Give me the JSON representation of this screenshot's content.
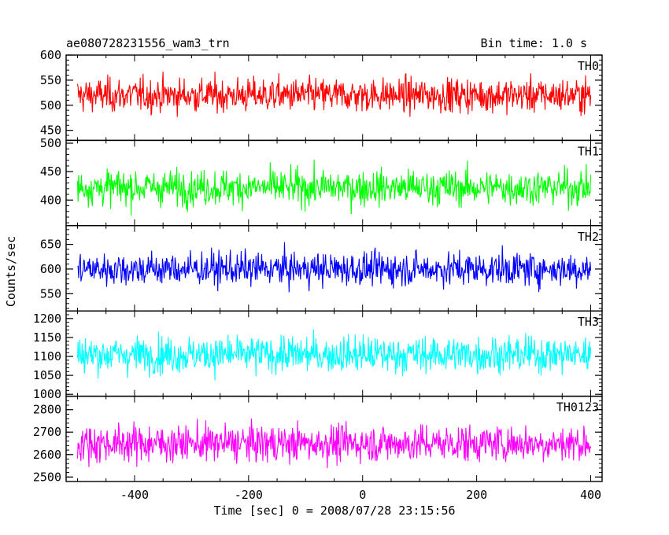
{
  "header": {
    "title": "ae080728231556_wam3_trn",
    "bin_time": "Bin time: 1.0 s"
  },
  "chart_data": {
    "type": "line",
    "title": "ae080728231556_wam3_trn",
    "xlabel": "Time [sec] 0 = 2008/07/28 23:15:56",
    "ylabel": "Counts/sec",
    "xlim": [
      -520,
      420
    ],
    "x_ticks": [
      -400,
      -200,
      0,
      200,
      400
    ],
    "x_range": [
      -500,
      400
    ],
    "grid": false,
    "panels": [
      {
        "name": "TH0",
        "color": "#ff0000",
        "ylim": [
          430,
          600
        ],
        "y_ticks": [
          450,
          500,
          550,
          600
        ],
        "mean": 520,
        "sd": 24
      },
      {
        "name": "TH1",
        "color": "#00ff00",
        "ylim": [
          355,
          505
        ],
        "y_ticks": [
          400,
          450,
          500
        ],
        "mean": 422,
        "sd": 22
      },
      {
        "name": "TH2",
        "color": "#0000ff",
        "ylim": [
          515,
          688
        ],
        "y_ticks": [
          550,
          600,
          650
        ],
        "mean": 600,
        "sd": 24
      },
      {
        "name": "TH3",
        "color": "#00ffff",
        "ylim": [
          995,
          1220
        ],
        "y_ticks": [
          1000,
          1050,
          1100,
          1150,
          1200
        ],
        "mean": 1105,
        "sd": 34
      },
      {
        "name": "TH0123",
        "color": "#ff00ff",
        "ylim": [
          2480,
          2860
        ],
        "y_ticks": [
          2500,
          2600,
          2700,
          2800
        ],
        "mean": 2650,
        "sd": 58
      }
    ]
  }
}
